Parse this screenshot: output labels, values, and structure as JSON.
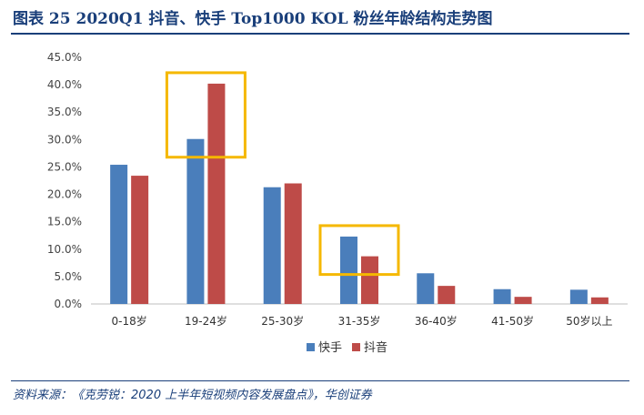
{
  "title": "图表 25   2020Q1 抖音、快手 Top1000 KOL 粉丝年龄结构走势图",
  "source": "资料来源：《克劳锐：2020 上半年短视频内容发展盘点》，华创证券",
  "colors": {
    "series0": "#4a7ebb",
    "series1": "#be4b48",
    "highlight": "#f5b800",
    "title": "#1a3f7a"
  },
  "chart_data": {
    "type": "bar",
    "categories": [
      "0-18岁",
      "19-24岁",
      "25-30岁",
      "31-35岁",
      "36-40岁",
      "41-50岁",
      "50岁以上"
    ],
    "series": [
      {
        "name": "快手",
        "values": [
          25.4,
          30.1,
          21.3,
          12.3,
          5.6,
          2.7,
          2.6
        ]
      },
      {
        "name": "抖音",
        "values": [
          23.4,
          40.2,
          22.0,
          8.7,
          3.3,
          1.3,
          1.2
        ]
      }
    ],
    "yticks": [
      "0.0%",
      "5.0%",
      "10.0%",
      "15.0%",
      "20.0%",
      "25.0%",
      "30.0%",
      "35.0%",
      "40.0%",
      "45.0%"
    ],
    "ylim": [
      0,
      45
    ],
    "grid": false,
    "legend": "bottom",
    "highlighted_categories": [
      "19-24岁",
      "31-35岁"
    ]
  }
}
